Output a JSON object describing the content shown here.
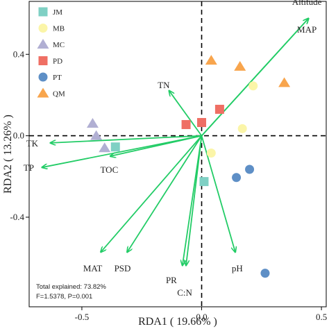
{
  "chart_data": {
    "type": "scatter",
    "title": "",
    "xlabel": "RDA1 ( 19.66% )",
    "ylabel": "RDA2 ( 13.26% )",
    "xlim": [
      -0.72,
      0.52
    ],
    "ylim": [
      -0.84,
      0.66
    ],
    "xticks": [
      -0.5,
      0.0,
      0.5
    ],
    "xtick_labels": [
      "-0.5",
      "0.0",
      "0.5"
    ],
    "yticks": [
      -0.4,
      0.0,
      0.4
    ],
    "ytick_labels": [
      "-0.4",
      "0.0",
      "0.4"
    ],
    "reference_lines": {
      "x": 0,
      "y": 0,
      "style": "dashed"
    },
    "legend_position": "top-left",
    "series": [
      {
        "name": "JM",
        "marker": "square",
        "color": "#7fd0c4",
        "points": [
          [
            -0.36,
            -0.055
          ],
          [
            0.01,
            -0.225
          ]
        ]
      },
      {
        "name": "MB",
        "marker": "circle",
        "color": "#fbf5a8",
        "points": [
          [
            0.04,
            -0.085
          ],
          [
            0.215,
            0.245
          ],
          [
            0.17,
            0.035
          ]
        ]
      },
      {
        "name": "MC",
        "marker": "triangle",
        "color": "#b1afd3",
        "points": [
          [
            -0.455,
            0.06
          ],
          [
            -0.44,
            0.0
          ],
          [
            -0.405,
            -0.06
          ]
        ]
      },
      {
        "name": "PD",
        "marker": "square",
        "color": "#ef6f64",
        "points": [
          [
            -0.065,
            0.055
          ],
          [
            0.0,
            0.065
          ],
          [
            0.075,
            0.13
          ]
        ]
      },
      {
        "name": "PT",
        "marker": "circle",
        "color": "#5e8fc6",
        "points": [
          [
            0.145,
            -0.205
          ],
          [
            0.2,
            -0.165
          ],
          [
            0.265,
            -0.675
          ]
        ]
      },
      {
        "name": "QM",
        "marker": "triangle",
        "color": "#f8a54d",
        "points": [
          [
            0.04,
            0.37
          ],
          [
            0.16,
            0.34
          ],
          [
            0.345,
            0.26
          ]
        ]
      }
    ],
    "vectors": {
      "color": "#22cc66",
      "items": [
        {
          "name": "Altitude",
          "x": 0.445,
          "y": 0.575
        },
        {
          "name": "MAP",
          "x": 0.445,
          "y": 0.575
        },
        {
          "name": "TN",
          "x": -0.135,
          "y": 0.22
        },
        {
          "name": "TK",
          "x": -0.63,
          "y": -0.035
        },
        {
          "name": "TP",
          "x": -0.665,
          "y": -0.155
        },
        {
          "name": "TOC",
          "x": -0.38,
          "y": -0.1
        },
        {
          "name": "MAT",
          "x": -0.42,
          "y": -0.57
        },
        {
          "name": "PSD",
          "x": -0.31,
          "y": -0.57
        },
        {
          "name": "PR",
          "x": -0.08,
          "y": -0.635
        },
        {
          "name": "C:N",
          "x": -0.065,
          "y": -0.635
        },
        {
          "name": "pH",
          "x": 0.14,
          "y": -0.57
        }
      ]
    },
    "annotations": [
      "Total explained: 73.82%",
      "F=1.5378, P=0.001"
    ]
  }
}
